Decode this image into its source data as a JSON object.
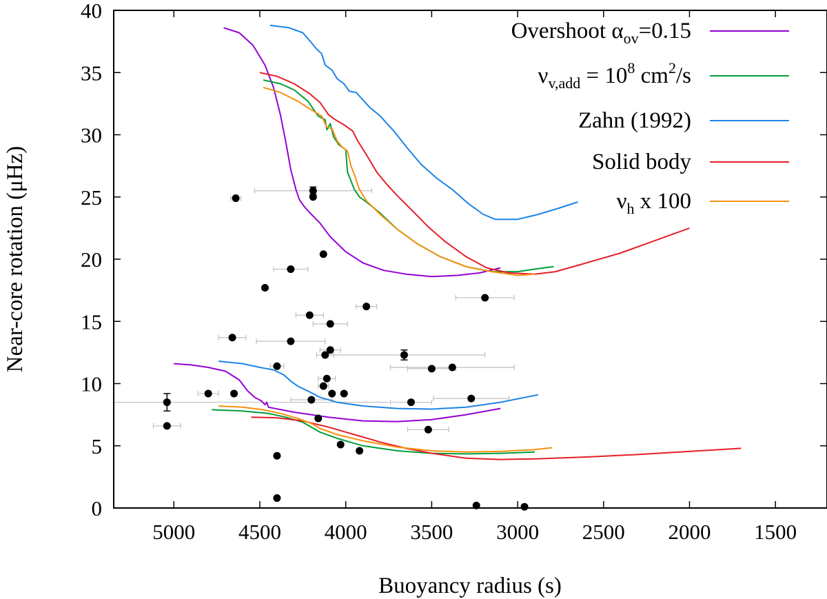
{
  "chart_data": {
    "type": "line",
    "title": "",
    "xlabel": "Buoyancy radius (s)",
    "ylabel": "Near-core rotation (μHz)",
    "xlim": [
      5350,
      1200
    ],
    "ylim": [
      0,
      40
    ],
    "x_ticks": [
      {
        "value": 5000,
        "label": "5000"
      },
      {
        "value": 4500,
        "label": "4500"
      },
      {
        "value": 4000,
        "label": "4000"
      },
      {
        "value": 3500,
        "label": "3500"
      },
      {
        "value": 3000,
        "label": "3000"
      },
      {
        "value": 2500,
        "label": "2500"
      },
      {
        "value": 2000,
        "label": "2000"
      },
      {
        "value": 1500,
        "label": "1500"
      }
    ],
    "y_ticks": [
      {
        "value": 0,
        "label": "0"
      },
      {
        "value": 5,
        "label": "5"
      },
      {
        "value": 10,
        "label": "10"
      },
      {
        "value": 15,
        "label": "15"
      },
      {
        "value": 20,
        "label": "20"
      },
      {
        "value": 25,
        "label": "25"
      },
      {
        "value": 30,
        "label": "30"
      },
      {
        "value": 35,
        "label": "35"
      },
      {
        "value": 40,
        "label": "40"
      }
    ],
    "legend": {
      "position": "top-right",
      "entries": [
        {
          "id": "overshoot",
          "color": "#9400d3",
          "text": "Overshoot α",
          "sub": "ov",
          "after": "=0.15"
        },
        {
          "id": "nuv",
          "color": "#009e3a",
          "text": "ν",
          "sub": "v,add",
          "mid": " = 10",
          "sup": "8",
          "mid2": " cm",
          "sup2": "2",
          "after": "/s"
        },
        {
          "id": "zahn",
          "color": "#1b84e6",
          "text": "Zahn (1992)"
        },
        {
          "id": "solid",
          "color": "#e51e28",
          "text": "Solid body"
        },
        {
          "id": "nuh",
          "color": "#f5910f",
          "text": "ν",
          "sub": "h",
          "after": " x 100"
        }
      ]
    },
    "series": [
      {
        "name": "Overshoot αov=0.15 (upper)",
        "color": "#9400d3",
        "points": [
          [
            4710,
            38.6
          ],
          [
            4620,
            38.2
          ],
          [
            4540,
            37.2
          ],
          [
            4470,
            35.6
          ],
          [
            4420,
            33.8
          ],
          [
            4380,
            31.6
          ],
          [
            4350,
            29.5
          ],
          [
            4320,
            27.2
          ],
          [
            4290,
            25.6
          ],
          [
            4270,
            24.8
          ],
          [
            4240,
            24.2
          ],
          [
            4200,
            23.6
          ],
          [
            4150,
            22.9
          ],
          [
            4090,
            21.8
          ],
          [
            4000,
            20.6
          ],
          [
            3900,
            19.7
          ],
          [
            3780,
            19.1
          ],
          [
            3650,
            18.8
          ],
          [
            3500,
            18.6
          ],
          [
            3350,
            18.7
          ],
          [
            3220,
            18.9
          ],
          [
            3100,
            19.3
          ]
        ]
      },
      {
        "name": "Overshoot αov=0.15 (lower)",
        "color": "#9400d3",
        "points": [
          [
            5000,
            11.6
          ],
          [
            4900,
            11.5
          ],
          [
            4800,
            11.3
          ],
          [
            4700,
            11.0
          ],
          [
            4620,
            10.3
          ],
          [
            4570,
            9.4
          ],
          [
            4530,
            8.9
          ],
          [
            4490,
            8.6
          ],
          [
            4470,
            8.3
          ],
          [
            4460,
            8.5
          ],
          [
            4450,
            8.1
          ],
          [
            4300,
            7.7
          ],
          [
            4100,
            7.3
          ],
          [
            3900,
            7.0
          ],
          [
            3700,
            6.95
          ],
          [
            3500,
            7.1
          ],
          [
            3300,
            7.5
          ],
          [
            3100,
            8.0
          ]
        ]
      },
      {
        "name": "νv,add = 10^8 cm2/s (upper)",
        "color": "#009e3a",
        "points": [
          [
            4480,
            34.4
          ],
          [
            4380,
            34.1
          ],
          [
            4300,
            33.6
          ],
          [
            4220,
            32.7
          ],
          [
            4160,
            31.5
          ],
          [
            4120,
            31.2
          ],
          [
            4110,
            30.4
          ],
          [
            4090,
            30.9
          ],
          [
            4070,
            29.8
          ],
          [
            4040,
            29.2
          ],
          [
            4000,
            28.8
          ],
          [
            3990,
            27.0
          ],
          [
            3970,
            26.3
          ],
          [
            3950,
            25.6
          ],
          [
            3920,
            25.0
          ],
          [
            3880,
            24.6
          ],
          [
            3800,
            23.7
          ],
          [
            3700,
            22.4
          ],
          [
            3580,
            21.2
          ],
          [
            3450,
            20.2
          ],
          [
            3300,
            19.4
          ],
          [
            3150,
            19.0
          ],
          [
            3000,
            19.0
          ],
          [
            2900,
            19.2
          ],
          [
            2790,
            19.4
          ]
        ]
      },
      {
        "name": "νv,add = 10^8 cm2/s (lower)",
        "color": "#009e3a",
        "points": [
          [
            4780,
            7.9
          ],
          [
            4600,
            7.8
          ],
          [
            4450,
            7.6
          ],
          [
            4350,
            7.3
          ],
          [
            4250,
            6.9
          ],
          [
            4200,
            6.5
          ],
          [
            4150,
            6.1
          ],
          [
            4050,
            5.6
          ],
          [
            3900,
            5.0
          ],
          [
            3700,
            4.6
          ],
          [
            3500,
            4.4
          ],
          [
            3300,
            4.35
          ],
          [
            3100,
            4.4
          ],
          [
            2900,
            4.5
          ]
        ]
      },
      {
        "name": "Zahn (1992) (upper)",
        "color": "#1b84e6",
        "points": [
          [
            4440,
            38.8
          ],
          [
            4330,
            38.6
          ],
          [
            4250,
            38.2
          ],
          [
            4200,
            37.4
          ],
          [
            4170,
            36.9
          ],
          [
            4140,
            36.5
          ],
          [
            4120,
            35.6
          ],
          [
            4080,
            35.2
          ],
          [
            4050,
            34.5
          ],
          [
            4010,
            34.1
          ],
          [
            3980,
            33.5
          ],
          [
            3940,
            33.4
          ],
          [
            3900,
            32.8
          ],
          [
            3860,
            32.2
          ],
          [
            3800,
            31.5
          ],
          [
            3720,
            30.3
          ],
          [
            3640,
            28.9
          ],
          [
            3560,
            27.6
          ],
          [
            3470,
            26.5
          ],
          [
            3380,
            25.6
          ],
          [
            3290,
            24.5
          ],
          [
            3200,
            23.6
          ],
          [
            3130,
            23.2
          ],
          [
            3000,
            23.2
          ],
          [
            2880,
            23.6
          ],
          [
            2760,
            24.1
          ],
          [
            2650,
            24.6
          ]
        ]
      },
      {
        "name": "Zahn (1992) (lower)",
        "color": "#1b84e6",
        "points": [
          [
            4740,
            11.8
          ],
          [
            4600,
            11.6
          ],
          [
            4500,
            11.3
          ],
          [
            4420,
            11.1
          ],
          [
            4360,
            10.7
          ],
          [
            4320,
            10.2
          ],
          [
            4280,
            9.8
          ],
          [
            4220,
            9.4
          ],
          [
            4150,
            8.9
          ],
          [
            4050,
            8.5
          ],
          [
            3900,
            8.2
          ],
          [
            3700,
            8.0
          ],
          [
            3500,
            7.95
          ],
          [
            3300,
            8.1
          ],
          [
            3100,
            8.5
          ],
          [
            2880,
            9.1
          ]
        ]
      },
      {
        "name": "Solid body (upper)",
        "color": "#e51e28",
        "points": [
          [
            4500,
            35.0
          ],
          [
            4400,
            34.7
          ],
          [
            4300,
            34.1
          ],
          [
            4210,
            33.3
          ],
          [
            4150,
            32.6
          ],
          [
            4100,
            31.6
          ],
          [
            4060,
            31.2
          ],
          [
            4010,
            30.8
          ],
          [
            3960,
            30.3
          ],
          [
            3930,
            29.5
          ],
          [
            3880,
            28.4
          ],
          [
            3820,
            27.0
          ],
          [
            3760,
            26.0
          ],
          [
            3700,
            25.1
          ],
          [
            3620,
            24.0
          ],
          [
            3520,
            22.6
          ],
          [
            3420,
            21.4
          ],
          [
            3300,
            20.2
          ],
          [
            3180,
            19.3
          ],
          [
            3050,
            18.9
          ],
          [
            2900,
            18.8
          ],
          [
            2780,
            19.0
          ],
          [
            2650,
            19.5
          ],
          [
            2400,
            20.5
          ],
          [
            2200,
            21.5
          ],
          [
            2000,
            22.5
          ]
        ]
      },
      {
        "name": "Solid body (lower)",
        "color": "#e51e28",
        "points": [
          [
            4550,
            7.3
          ],
          [
            4400,
            7.25
          ],
          [
            4250,
            7.0
          ],
          [
            4100,
            6.5
          ],
          [
            3950,
            5.9
          ],
          [
            3800,
            5.3
          ],
          [
            3650,
            4.8
          ],
          [
            3500,
            4.4
          ],
          [
            3300,
            4.0
          ],
          [
            3100,
            3.9
          ],
          [
            2900,
            3.95
          ],
          [
            2600,
            4.1
          ],
          [
            2300,
            4.3
          ],
          [
            2000,
            4.55
          ],
          [
            1700,
            4.8
          ]
        ]
      },
      {
        "name": "νh x 100 (upper)",
        "color": "#f5910f",
        "points": [
          [
            4480,
            33.8
          ],
          [
            4380,
            33.4
          ],
          [
            4280,
            32.7
          ],
          [
            4200,
            32.0
          ],
          [
            4140,
            31.5
          ],
          [
            4110,
            30.6
          ],
          [
            4080,
            30.5
          ],
          [
            4050,
            29.5
          ],
          [
            4020,
            29.0
          ],
          [
            3990,
            28.7
          ],
          [
            3970,
            27.5
          ],
          [
            3950,
            26.8
          ],
          [
            3920,
            25.6
          ],
          [
            3880,
            24.7
          ],
          [
            3800,
            23.6
          ],
          [
            3700,
            22.4
          ],
          [
            3580,
            21.2
          ],
          [
            3450,
            20.2
          ],
          [
            3300,
            19.4
          ],
          [
            3150,
            19.0
          ],
          [
            3000,
            18.7
          ],
          [
            2900,
            18.8
          ]
        ]
      },
      {
        "name": "νh x 100 (lower)",
        "color": "#f5910f",
        "points": [
          [
            4740,
            8.2
          ],
          [
            4600,
            8.1
          ],
          [
            4480,
            7.9
          ],
          [
            4380,
            7.6
          ],
          [
            4280,
            7.2
          ],
          [
            4200,
            6.8
          ],
          [
            4150,
            6.4
          ],
          [
            4050,
            5.9
          ],
          [
            3900,
            5.4
          ],
          [
            3700,
            4.9
          ],
          [
            3500,
            4.6
          ],
          [
            3300,
            4.5
          ],
          [
            3100,
            4.55
          ],
          [
            2900,
            4.7
          ],
          [
            2800,
            4.85
          ]
        ]
      }
    ],
    "observations": [
      {
        "x": 5040,
        "y": 8.5,
        "xerr": 0,
        "yerr": 0.7
      },
      {
        "x": 5040,
        "y": 6.6,
        "xerr": 80,
        "yerr": 0
      },
      {
        "x": 4800,
        "y": 9.2,
        "xerr": 60,
        "yerr": 0
      },
      {
        "x": 4650,
        "y": 9.2,
        "xerr": 0,
        "yerr": 0
      },
      {
        "x": 4640,
        "y": 24.9,
        "xerr": 30,
        "yerr": 0
      },
      {
        "x": 4660,
        "y": 13.7,
        "xerr": 80,
        "yerr": 0
      },
      {
        "x": 4470,
        "y": 17.7,
        "xerr": 0,
        "yerr": 0
      },
      {
        "x": 4400,
        "y": 4.2,
        "xerr": 0,
        "yerr": 0
      },
      {
        "x": 4400,
        "y": 0.8,
        "xerr": 0,
        "yerr": 0
      },
      {
        "x": 4400,
        "y": 11.4,
        "xerr": 40,
        "yerr": 0
      },
      {
        "x": 4320,
        "y": 19.2,
        "xerr": 100,
        "yerr": 0
      },
      {
        "x": 4320,
        "y": 13.4,
        "xerr": 200,
        "yerr": 0
      },
      {
        "x": 4210,
        "y": 15.5,
        "xerr": 80,
        "yerr": 0
      },
      {
        "x": 4200,
        "y": 8.7,
        "xerr": 120,
        "yerr": 0
      },
      {
        "x": 4190,
        "y": 25.5,
        "xerr": 340,
        "yerr": 0.3
      },
      {
        "x": 4190,
        "y": 25.0,
        "xerr": 0,
        "yerr": 0
      },
      {
        "x": 4160,
        "y": 7.2,
        "xerr": 0,
        "yerr": 0
      },
      {
        "x": 4130,
        "y": 20.4,
        "xerr": 0,
        "yerr": 0
      },
      {
        "x": 4130,
        "y": 9.8,
        "xerr": 30,
        "yerr": 0
      },
      {
        "x": 4120,
        "y": 12.3,
        "xerr": 50,
        "yerr": 0
      },
      {
        "x": 4110,
        "y": 10.4,
        "xerr": 50,
        "yerr": 0
      },
      {
        "x": 4090,
        "y": 14.8,
        "xerr": 100,
        "yerr": 0
      },
      {
        "x": 4090,
        "y": 12.7,
        "xerr": 60,
        "yerr": 0
      },
      {
        "x": 4080,
        "y": 9.2,
        "xerr": 0,
        "yerr": 0
      },
      {
        "x": 4030,
        "y": 5.1,
        "xerr": 0,
        "yerr": 0
      },
      {
        "x": 4010,
        "y": 9.2,
        "xerr": 0,
        "yerr": 0
      },
      {
        "x": 3920,
        "y": 4.6,
        "xerr": 0,
        "yerr": 0
      },
      {
        "x": 3880,
        "y": 16.2,
        "xerr": 60,
        "yerr": 0
      },
      {
        "x": 3660,
        "y": 12.3,
        "xerr": 470,
        "yerr": 0.4
      },
      {
        "x": 3620,
        "y": 8.5,
        "xerr": 120,
        "yerr": 0
      },
      {
        "x": 3520,
        "y": 6.3,
        "xerr": 120,
        "yerr": 0
      },
      {
        "x": 3500,
        "y": 11.2,
        "xerr": 140,
        "yerr": 0
      },
      {
        "x": 3380,
        "y": 11.3,
        "xerr": 360,
        "yerr": 0
      },
      {
        "x": 3270,
        "y": 8.8,
        "xerr": 220,
        "yerr": 0
      },
      {
        "x": 3240,
        "y": 0.2,
        "xerr": 0,
        "yerr": 0
      },
      {
        "x": 3190,
        "y": 16.9,
        "xerr": 170,
        "yerr": 0
      },
      {
        "x": 2960,
        "y": 0.1,
        "xerr": 0,
        "yerr": 0
      }
    ],
    "long_error_bar": {
      "y": 8.5,
      "x_from": 5350,
      "x_to": 3750
    }
  }
}
